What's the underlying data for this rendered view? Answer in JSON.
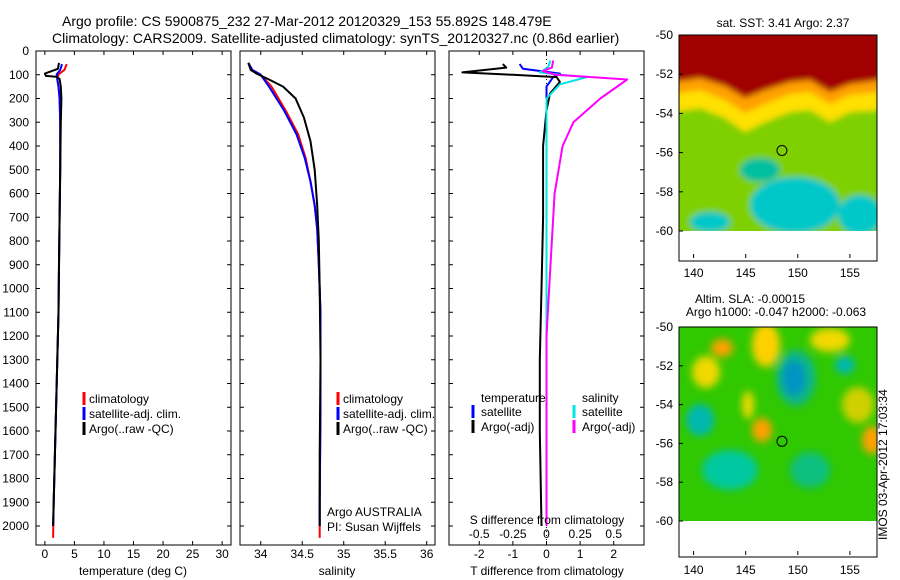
{
  "header": {
    "line1": "Argo profile: CS 5900875_232 27-Mar-2012 20120329_153 55.892S 148.479E",
    "line2": "Climatology: CARS2009. Satellite-adjusted climatology: synTS_20120327.nc (0.86d earlier)"
  },
  "side_stamp": "IMOS 03-Apr-2012 17:03:34",
  "depth_ticks": [
    0,
    100,
    200,
    300,
    400,
    500,
    600,
    700,
    800,
    900,
    1000,
    1100,
    1200,
    1300,
    1400,
    1500,
    1600,
    1700,
    1800,
    1900,
    2000
  ],
  "colors": {
    "climatology": "#ff0000",
    "satellite": "#0000ff",
    "argo": "#000000",
    "sat_salinity": "#00e5e5",
    "argo_salinity": "#ff00ff",
    "frame": "#000000"
  },
  "chart_data": [
    {
      "type": "line",
      "id": "temperature",
      "xlabel": "temperature (deg C)",
      "xlim": [
        -1.5,
        31.5
      ],
      "xticks": [
        0,
        5,
        10,
        15,
        20,
        25,
        30
      ],
      "xtick_labels": [
        "0",
        "5",
        "10",
        "15",
        "20",
        "25",
        "30"
      ],
      "ylim": [
        0,
        2080
      ],
      "legend": {
        "items": [
          "climatology",
          "satellite-adj. clim.",
          "Argo(..raw -QC)"
        ]
      },
      "series": [
        {
          "name": "climatology",
          "color": "#ff0000",
          "points": [
            [
              3.7,
              55
            ],
            [
              3.3,
              80
            ],
            [
              2.3,
              98
            ],
            [
              2.1,
              120
            ],
            [
              2.3,
              150
            ],
            [
              2.5,
              200
            ],
            [
              2.6,
              300
            ],
            [
              2.6,
              500
            ],
            [
              2.5,
              700
            ],
            [
              2.4,
              900
            ],
            [
              2.3,
              1100
            ],
            [
              2.1,
              1300
            ],
            [
              1.9,
              1500
            ],
            [
              1.7,
              1700
            ],
            [
              1.5,
              1900
            ],
            [
              1.4,
              2050
            ]
          ]
        },
        {
          "name": "satellite-adj. clim.",
          "color": "#0000ff",
          "points": [
            [
              2.9,
              55
            ],
            [
              2.6,
              80
            ],
            [
              2.0,
              98
            ],
            [
              2.1,
              120
            ],
            [
              2.3,
              150
            ],
            [
              2.5,
              200
            ],
            [
              2.6,
              300
            ],
            [
              2.6,
              500
            ],
            [
              2.5,
              700
            ],
            [
              2.4,
              900
            ],
            [
              2.3,
              1100
            ],
            [
              2.1,
              1300
            ],
            [
              1.9,
              1500
            ],
            [
              1.7,
              1700
            ],
            [
              1.5,
              1900
            ],
            [
              1.4,
              2000
            ]
          ]
        },
        {
          "name": "Argo(..raw -QC)",
          "color": "#000000",
          "points": [
            [
              2.4,
              50
            ],
            [
              2.2,
              75
            ],
            [
              0.0,
              95
            ],
            [
              0.2,
              105
            ],
            [
              1.9,
              108
            ],
            [
              2.5,
              118
            ],
            [
              2.7,
              150
            ],
            [
              2.8,
              200
            ],
            [
              2.7,
              300
            ],
            [
              2.6,
              500
            ],
            [
              2.5,
              700
            ],
            [
              2.4,
              900
            ],
            [
              2.3,
              1100
            ],
            [
              2.1,
              1300
            ],
            [
              1.9,
              1500
            ],
            [
              1.7,
              1700
            ],
            [
              1.5,
              1900
            ],
            [
              1.4,
              2000
            ]
          ]
        }
      ]
    },
    {
      "type": "line",
      "id": "salinity",
      "xlabel": "salinity",
      "xlim": [
        33.75,
        36.1
      ],
      "xticks": [
        34,
        34.5,
        35,
        35.5,
        36
      ],
      "xtick_labels": [
        "34",
        "34.5",
        "35",
        "35.5",
        "36"
      ],
      "ylim": [
        0,
        2080
      ],
      "legend": {
        "items": [
          "climatology",
          "satellite-adj. clim.",
          "Argo(..raw -QC)"
        ]
      },
      "annotation": [
        "Argo AUSTRALIA",
        "PI: Susan Wijffels"
      ],
      "series": [
        {
          "name": "climatology",
          "color": "#ff0000",
          "points": [
            [
              33.85,
              50
            ],
            [
              33.9,
              80
            ],
            [
              34.0,
              100
            ],
            [
              34.13,
              150
            ],
            [
              34.3,
              250
            ],
            [
              34.45,
              350
            ],
            [
              34.54,
              450
            ],
            [
              34.6,
              550
            ],
            [
              34.65,
              650
            ],
            [
              34.68,
              750
            ],
            [
              34.7,
              900
            ],
            [
              34.72,
              1100
            ],
            [
              34.72,
              1500
            ],
            [
              34.71,
              1900
            ],
            [
              34.71,
              2050
            ]
          ]
        },
        {
          "name": "satellite-adj. clim.",
          "color": "#0000ff",
          "points": [
            [
              33.85,
              50
            ],
            [
              33.9,
              80
            ],
            [
              34.0,
              100
            ],
            [
              34.1,
              150
            ],
            [
              34.28,
              250
            ],
            [
              34.43,
              350
            ],
            [
              34.53,
              450
            ],
            [
              34.6,
              550
            ],
            [
              34.65,
              650
            ],
            [
              34.68,
              750
            ],
            [
              34.7,
              900
            ],
            [
              34.72,
              1100
            ],
            [
              34.72,
              1500
            ],
            [
              34.71,
              1900
            ],
            [
              34.71,
              2000
            ]
          ]
        },
        {
          "name": "Argo(..raw -QC)",
          "color": "#000000",
          "points": [
            [
              33.85,
              50
            ],
            [
              33.88,
              80
            ],
            [
              33.95,
              95
            ],
            [
              34.1,
              120
            ],
            [
              34.27,
              150
            ],
            [
              34.42,
              200
            ],
            [
              34.52,
              280
            ],
            [
              34.6,
              380
            ],
            [
              34.65,
              500
            ],
            [
              34.68,
              650
            ],
            [
              34.7,
              800
            ],
            [
              34.71,
              1000
            ],
            [
              34.72,
              1300
            ],
            [
              34.71,
              1700
            ],
            [
              34.71,
              2000
            ]
          ]
        }
      ]
    },
    {
      "type": "line",
      "id": "difference",
      "xlabel": "T difference from climatology",
      "top_axis_label": "S difference from climatology",
      "xlim": [
        -2.9,
        2.9
      ],
      "xticks": [
        -2,
        -1,
        0,
        1,
        2
      ],
      "xtick_labels": [
        "-2",
        "-1",
        "0",
        "1",
        "2"
      ],
      "sticks": [
        -0.5,
        -0.25,
        0,
        0.25,
        0.5
      ],
      "stick_labels": [
        "-0.5",
        "-0.25",
        "0",
        "0.25",
        "0.5"
      ],
      "ylim": [
        0,
        2080
      ],
      "legend": {
        "left_title": "temperature",
        "right_title": "salinity",
        "items": [
          "satellite",
          "Argo(-adj)",
          "satellite",
          "Argo(-adj)"
        ]
      },
      "series": [
        {
          "name": "satellite",
          "group": "temperature",
          "color": "#0000ff",
          "points": [
            [
              -0.8,
              55
            ],
            [
              -0.7,
              75
            ],
            [
              0.4,
              95
            ],
            [
              0.2,
              110
            ],
            [
              0.0,
              150
            ],
            [
              0.0,
              300
            ],
            [
              0.0,
              2000
            ]
          ]
        },
        {
          "name": "Argo(-adj)",
          "group": "temperature",
          "color": "#000000",
          "points": [
            [
              -1.3,
              55
            ],
            [
              -1.2,
              70
            ],
            [
              -2.5,
              90
            ],
            [
              -1.0,
              100
            ],
            [
              0.3,
              110
            ],
            [
              0.4,
              130
            ],
            [
              0.1,
              180
            ],
            [
              0.0,
              250
            ],
            [
              -0.1,
              400
            ],
            [
              -0.1,
              700
            ],
            [
              -0.15,
              1000
            ],
            [
              -0.2,
              1300
            ],
            [
              -0.2,
              1600
            ],
            [
              -0.15,
              2000
            ]
          ]
        },
        {
          "name": "satellite",
          "group": "salinity",
          "color": "#00e5e5",
          "points": [
            [
              0.03,
              40
            ],
            [
              0.01,
              70
            ],
            [
              -0.05,
              90
            ],
            [
              0.1,
              100
            ],
            [
              0.3,
              110
            ],
            [
              0.1,
              140
            ],
            [
              0.0,
              200
            ],
            [
              0.0,
              500
            ],
            [
              0.0,
              1000
            ],
            [
              0.0,
              2000
            ]
          ]
        },
        {
          "name": "Argo(-adj)",
          "group": "salinity",
          "color": "#ff00ff",
          "points": [
            [
              0.05,
              40
            ],
            [
              0.04,
              70
            ],
            [
              -0.03,
              85
            ],
            [
              0.07,
              100
            ],
            [
              0.6,
              120
            ],
            [
              0.4,
              200
            ],
            [
              0.2,
              300
            ],
            [
              0.12,
              400
            ],
            [
              0.06,
              600
            ],
            [
              0.03,
              900
            ],
            [
              0.0,
              1200
            ],
            [
              0.0,
              2000
            ]
          ]
        }
      ]
    },
    {
      "type": "heatmap",
      "id": "sst",
      "title": "sat. SST: 3.41  Argo: 2.37",
      "xticks": [
        140,
        145,
        150,
        155
      ],
      "yticks": [
        "-50",
        "-52",
        "-54",
        "-56",
        "-58",
        "-60"
      ],
      "xlim": [
        138.6,
        157.6
      ],
      "ylim": [
        -60,
        -50
      ],
      "marker": {
        "lon": 148.479,
        "lat": -55.892
      }
    },
    {
      "type": "heatmap",
      "id": "sla",
      "title": "Altim. SLA: -0.00015",
      "subtitle": "Argo h1000: -0.047 h2000: -0.063",
      "xticks": [
        140,
        145,
        150,
        155
      ],
      "yticks": [
        "-50",
        "-52",
        "-54",
        "-56",
        "-58",
        "-60"
      ],
      "xlim": [
        138.6,
        157.6
      ],
      "ylim": [
        -60,
        -50
      ],
      "marker": {
        "lon": 148.479,
        "lat": -55.892
      }
    }
  ]
}
